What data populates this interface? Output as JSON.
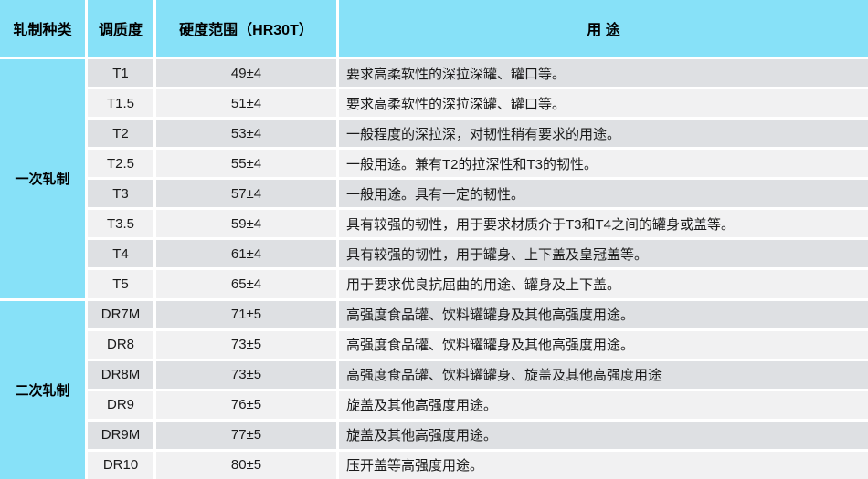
{
  "table": {
    "headers": {
      "rolling_type": "轧制种类",
      "temper_grade": "调质度",
      "hardness_range": "硬度范围（HR30T）",
      "usage": "用 途"
    },
    "groups": [
      {
        "label": "一次轧制",
        "rows": [
          {
            "temper": "T1",
            "hardness": "49±4",
            "use": "要求高柔软性的深拉深罐、罐口等。"
          },
          {
            "temper": "T1.5",
            "hardness": "51±4",
            "use": "要求高柔软性的深拉深罐、罐口等。"
          },
          {
            "temper": "T2",
            "hardness": "53±4",
            "use": "一般程度的深拉深，对韧性稍有要求的用途。"
          },
          {
            "temper": "T2.5",
            "hardness": "55±4",
            "use": "一般用途。兼有T2的拉深性和T3的韧性。"
          },
          {
            "temper": "T3",
            "hardness": "57±4",
            "use": "一般用途。具有一定的韧性。"
          },
          {
            "temper": "T3.5",
            "hardness": "59±4",
            "use": "具有较强的韧性，用于要求材质介于T3和T4之间的罐身或盖等。"
          },
          {
            "temper": "T4",
            "hardness": "61±4",
            "use": "具有较强的韧性，用于罐身、上下盖及皇冠盖等。"
          },
          {
            "temper": "T5",
            "hardness": "65±4",
            "use": "用于要求优良抗屈曲的用途、罐身及上下盖。"
          }
        ]
      },
      {
        "label": "二次轧制",
        "rows": [
          {
            "temper": "DR7M",
            "hardness": "71±5",
            "use": "高强度食品罐、饮料罐罐身及其他高强度用途。"
          },
          {
            "temper": "DR8",
            "hardness": "73±5",
            "use": "高强度食品罐、饮料罐罐身及其他高强度用途。"
          },
          {
            "temper": "DR8M",
            "hardness": "73±5",
            "use": "高强度食品罐、饮料罐罐身、旋盖及其他高强度用途"
          },
          {
            "temper": "DR9",
            "hardness": "76±5",
            "use": "旋盖及其他高强度用途。"
          },
          {
            "temper": "DR9M",
            "hardness": "77±5",
            "use": "旋盖及其他高强度用途。"
          },
          {
            "temper": "DR10",
            "hardness": "80±5",
            "use": "压开盖等高强度用途。"
          }
        ]
      }
    ]
  },
  "colors": {
    "header_bg": "#87e1f8",
    "row_dark": "#dee0e3",
    "row_light": "#f1f1f2",
    "separator": "#ffffff",
    "text": "#1a1a1a"
  }
}
